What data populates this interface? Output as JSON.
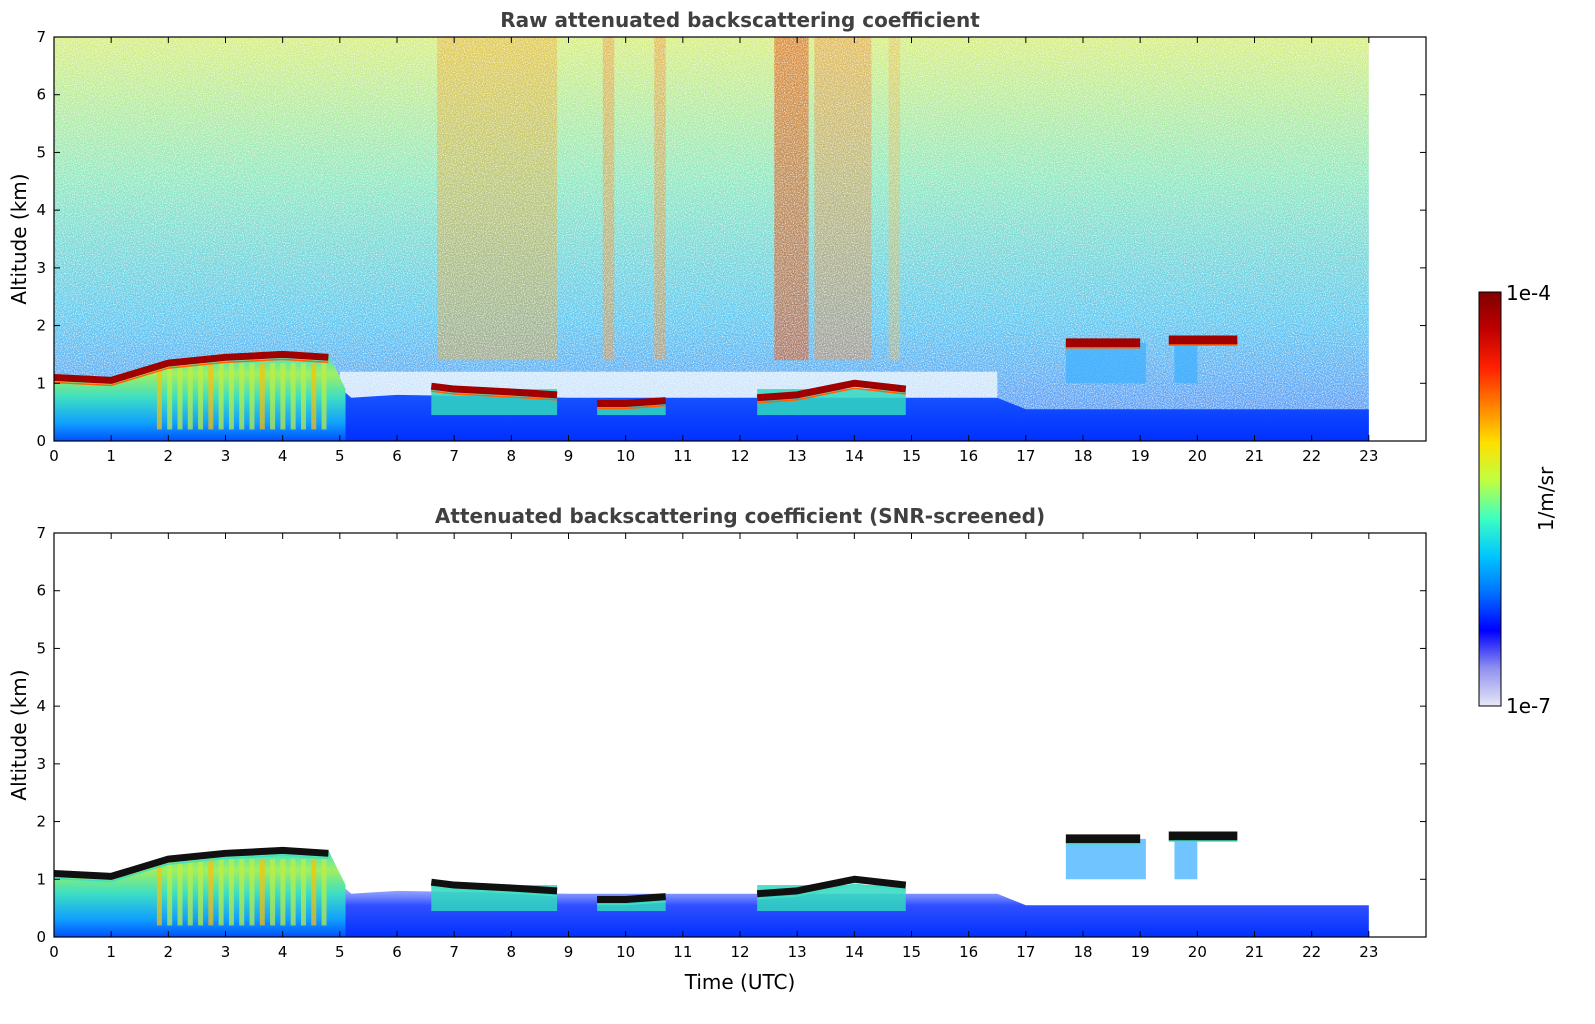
{
  "chart_data": [
    {
      "type": "heatmap",
      "title": "Raw attenuated backscattering coefficient",
      "xlabel": "",
      "ylabel": "Altitude (km)",
      "xlim": [
        0,
        24
      ],
      "ylim": [
        0,
        7
      ],
      "x_ticks": [
        "0",
        "1",
        "2",
        "3",
        "4",
        "5",
        "6",
        "7",
        "8",
        "9",
        "10",
        "11",
        "12",
        "13",
        "14",
        "15",
        "16",
        "17",
        "18",
        "19",
        "20",
        "21",
        "22",
        "23"
      ],
      "y_ticks": [
        "0",
        "1",
        "2",
        "3",
        "4",
        "5",
        "6",
        "7"
      ],
      "data_end_time": 23,
      "value_scale": "log",
      "features": [
        {
          "feature": "boundary layer top",
          "time": [
            0,
            1,
            2,
            3,
            4,
            4.8
          ],
          "altitude": [
            1.1,
            1.05,
            1.35,
            1.45,
            1.5,
            1.45
          ]
        },
        {
          "feature": "aerosol layer top",
          "time": [
            6.6,
            7,
            8,
            8.8
          ],
          "altitude": [
            0.95,
            0.9,
            0.85,
            0.8
          ]
        },
        {
          "feature": "aerosol layer top",
          "time": [
            9.5,
            10,
            10.7
          ],
          "altitude": [
            0.65,
            0.65,
            0.7
          ]
        },
        {
          "feature": "aerosol layer top",
          "time": [
            12.3,
            13,
            14,
            14.9
          ],
          "altitude": [
            0.75,
            0.8,
            1.0,
            0.9
          ]
        },
        {
          "feature": "elevated cloud",
          "time": [
            17.7,
            19
          ],
          "altitude": [
            1.7,
            1.7
          ]
        },
        {
          "feature": "elevated cloud",
          "time": [
            19.5,
            20.7
          ],
          "altitude": [
            1.75,
            1.75
          ]
        }
      ]
    },
    {
      "type": "heatmap",
      "title": "Attenuated backscattering coefficient (SNR-screened)",
      "xlabel": "Time (UTC)",
      "ylabel": "Altitude (km)",
      "xlim": [
        0,
        24
      ],
      "ylim": [
        0,
        7
      ],
      "x_ticks": [
        "0",
        "1",
        "2",
        "3",
        "4",
        "5",
        "6",
        "7",
        "8",
        "9",
        "10",
        "11",
        "12",
        "13",
        "14",
        "15",
        "16",
        "17",
        "18",
        "19",
        "20",
        "21",
        "22",
        "23"
      ],
      "y_ticks": [
        "0",
        "1",
        "2",
        "3",
        "4",
        "5",
        "6",
        "7"
      ],
      "data_end_time": 23,
      "value_scale": "log"
    }
  ],
  "colorbar": {
    "label": "1/m/sr",
    "max_label": "1e-4",
    "min_label": "1e-7",
    "range": [
      1e-07,
      0.0001
    ],
    "colormap": "jet",
    "colors": [
      "#e8e8f8",
      "#9090f0",
      "#0000ff",
      "#0070ff",
      "#00c8ff",
      "#40ffc0",
      "#c0ff40",
      "#ffe000",
      "#ff8000",
      "#ff2000",
      "#c00000",
      "#800000"
    ]
  }
}
